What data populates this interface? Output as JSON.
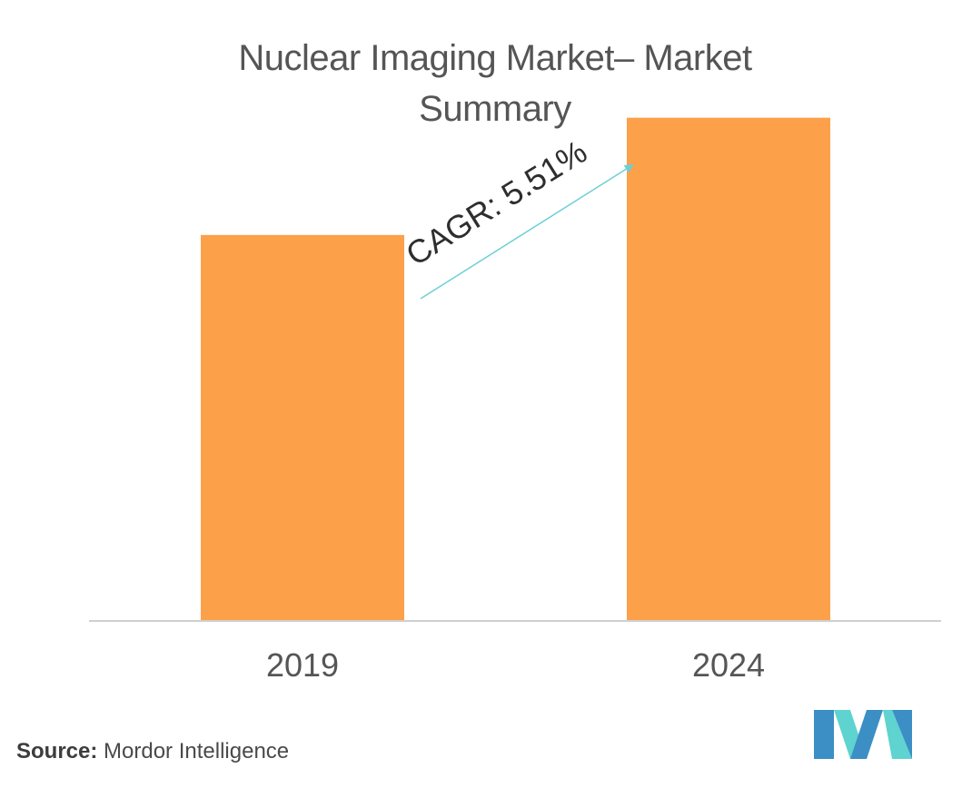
{
  "chart_data": {
    "type": "bar",
    "title_line1": "Nuclear Imaging Market– Market",
    "title_line2": "Summary",
    "categories": [
      "2019",
      "2024"
    ],
    "values": [
      0.79,
      1.03
    ],
    "ylim": [
      0,
      1.1
    ],
    "annotation": "CAGR: 5.51%",
    "colors": {
      "bar": "#FCA04A",
      "arrow": "#6CCFD6",
      "axis": "#cfcfcf",
      "text": "#555555"
    },
    "grid": false
  },
  "source": {
    "label": "Source:",
    "text": "Mordor Intelligence"
  },
  "logo": {
    "icon": "mordor-intelligence-logo",
    "colors": [
      "#3b8fc5",
      "#5fd3cf"
    ]
  }
}
